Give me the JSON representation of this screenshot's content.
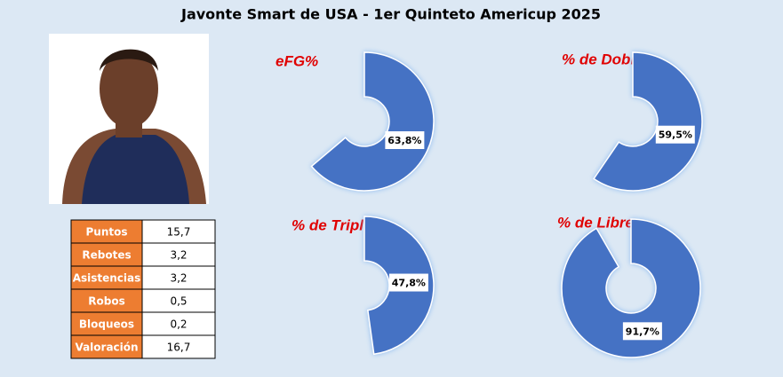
{
  "title": "Javonte Smart de USA - 1er Quinteto Americup 2025",
  "table": {
    "rows": [
      [
        "Puntos",
        "15,7"
      ],
      [
        "Rebotes",
        "3,2"
      ],
      [
        "Asistencias",
        "3,2"
      ],
      [
        "Robos",
        "0,5"
      ],
      [
        "Bloqueos",
        "0,2"
      ],
      [
        "Valoración",
        "16,7"
      ]
    ]
  },
  "chart_data": [
    {
      "type": "donut",
      "title": "eFG%",
      "values": [
        63.8
      ],
      "value_labels": [
        "63,8%"
      ],
      "color": "#4472c4"
    },
    {
      "type": "donut",
      "title": "% de Dobles",
      "values": [
        59.5
      ],
      "value_labels": [
        "59,5%"
      ],
      "color": "#4472c4"
    },
    {
      "type": "donut",
      "title": "% de Triples",
      "values": [
        47.8
      ],
      "value_labels": [
        "47,8%"
      ],
      "color": "#4472c4"
    },
    {
      "type": "donut",
      "title": "% de Libres",
      "values": [
        91.7
      ],
      "value_labels": [
        "91,7%"
      ],
      "color": "#4472c4"
    }
  ]
}
